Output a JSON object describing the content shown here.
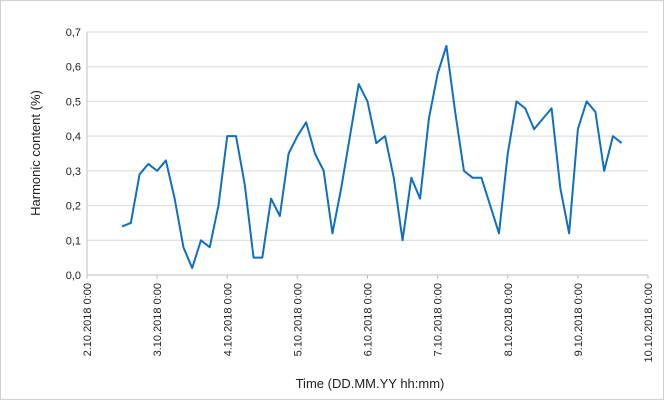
{
  "chart_data": {
    "type": "line",
    "xlabel": "Time (DD.MM.YY  hh:mm)",
    "ylabel": "Harmonic content  (%)",
    "x": [
      "2.10.2018 12:00",
      "2.10.2018 15:00",
      "2.10.2018 18:00",
      "2.10.2018 21:00",
      "3.10.2018 0:00",
      "3.10.2018 3:00",
      "3.10.2018 6:00",
      "3.10.2018 9:00",
      "3.10.2018 12:00",
      "3.10.2018 15:00",
      "3.10.2018 18:00",
      "3.10.2018 21:00",
      "4.10.2018 0:00",
      "4.10.2018 3:00",
      "4.10.2018 6:00",
      "4.10.2018 9:00",
      "4.10.2018 12:00",
      "4.10.2018 15:00",
      "4.10.2018 18:00",
      "4.10.2018 21:00",
      "5.10.2018 0:00",
      "5.10.2018 3:00",
      "5.10.2018 6:00",
      "5.10.2018 9:00",
      "5.10.2018 12:00",
      "5.10.2018 15:00",
      "5.10.2018 18:00",
      "5.10.2018 21:00",
      "6.10.2018 0:00",
      "6.10.2018 3:00",
      "6.10.2018 6:00",
      "6.10.2018 9:00",
      "6.10.2018 12:00",
      "6.10.2018 15:00",
      "6.10.2018 18:00",
      "6.10.2018 21:00",
      "7.10.2018 0:00",
      "7.10.2018 3:00",
      "7.10.2018 6:00",
      "7.10.2018 9:00",
      "7.10.2018 12:00",
      "7.10.2018 15:00",
      "7.10.2018 18:00",
      "7.10.2018 21:00",
      "8.10.2018 0:00",
      "8.10.2018 3:00",
      "8.10.2018 6:00",
      "8.10.2018 9:00",
      "8.10.2018 12:00",
      "8.10.2018 15:00",
      "8.10.2018 18:00",
      "8.10.2018 21:00",
      "9.10.2018 0:00",
      "9.10.2018 3:00",
      "9.10.2018 6:00",
      "9.10.2018 9:00",
      "9.10.2018 12:00",
      "9.10.2018 15:00"
    ],
    "series": [
      {
        "color": "#0f6fc0",
        "values": [
          0.14,
          0.15,
          0.29,
          0.32,
          0.3,
          0.33,
          0.22,
          0.08,
          0.02,
          0.1,
          0.08,
          0.2,
          0.4,
          0.4,
          0.26,
          0.05,
          0.05,
          0.22,
          0.17,
          0.35,
          0.4,
          0.44,
          0.35,
          0.3,
          0.12,
          0.25,
          0.4,
          0.55,
          0.5,
          0.38,
          0.4,
          0.28,
          0.1,
          0.28,
          0.22,
          0.45,
          0.58,
          0.66,
          0.47,
          0.3,
          0.28,
          0.28,
          0.2,
          0.12,
          0.35,
          0.5,
          0.48,
          0.42,
          0.45,
          0.48,
          0.25,
          0.12,
          0.42,
          0.5,
          0.47,
          0.3,
          0.4,
          0.38
        ]
      }
    ],
    "xlim": [
      "2.10.2018 0:00",
      "10.10.2018 0:00"
    ],
    "xticks": [
      "2.10.2018 0:00",
      "3.10.2018 0:00",
      "4.10.2018 0:00",
      "5.10.2018 0:00",
      "6.10.2018 0:00",
      "7.10.2018 0:00",
      "8.10.2018 0:00",
      "9.10.2018 0:00",
      "10.10.2018 0:00"
    ],
    "ylim": [
      0,
      0.7
    ],
    "yticks": [
      {
        "value": 0,
        "label": "0,0"
      },
      {
        "value": 0.1,
        "label": "0,1"
      },
      {
        "value": 0.2,
        "label": "0,2"
      },
      {
        "value": 0.3,
        "label": "0,3"
      },
      {
        "value": 0.4,
        "label": "0,4"
      },
      {
        "value": 0.5,
        "label": "0,5"
      },
      {
        "value": 0.6,
        "label": "0,6"
      },
      {
        "value": 0.7,
        "label": "0,7"
      }
    ],
    "grid": true
  }
}
